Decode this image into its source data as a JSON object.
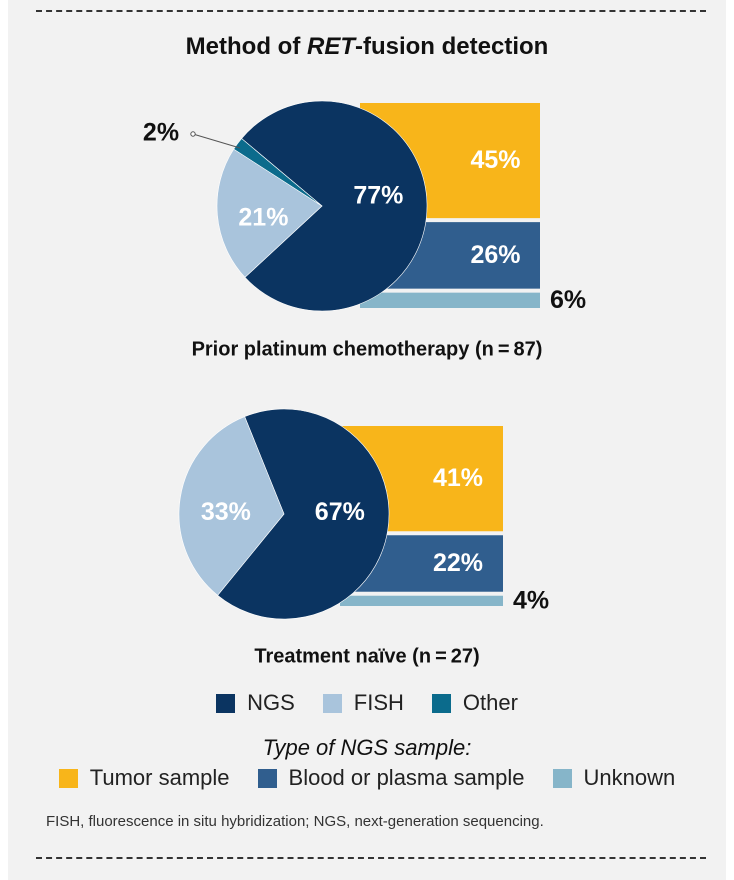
{
  "title_prefix": "Method of ",
  "title_italic": "RET",
  "title_suffix": "-fusion detection",
  "colors": {
    "ngs": "#0b3461",
    "fish": "#a9c4dc",
    "other": "#0b6b8c",
    "tumor": "#f8b51a",
    "blood": "#305e8e",
    "unknown": "#86b5c9"
  },
  "chart_data": [
    {
      "type": "pie",
      "title": "Prior platinum chemotherapy (n = 87)",
      "slices": [
        {
          "key": "ngs",
          "name": "NGS",
          "value": 77,
          "label": "77%"
        },
        {
          "key": "fish",
          "name": "FISH",
          "value": 21,
          "label": "21%"
        },
        {
          "key": "other",
          "name": "Other",
          "value": 2,
          "label": "2%"
        }
      ],
      "ngs_breakdown": [
        {
          "key": "tumor",
          "name": "Tumor sample",
          "value": 45,
          "label": "45%"
        },
        {
          "key": "blood",
          "name": "Blood or plasma sample",
          "value": 26,
          "label": "26%"
        },
        {
          "key": "unknown",
          "name": "Unknown",
          "value": 6,
          "label": "6%"
        }
      ]
    },
    {
      "type": "pie",
      "title": "Treatment naïve (n = 27)",
      "slices": [
        {
          "key": "ngs",
          "name": "NGS",
          "value": 67,
          "label": "67%"
        },
        {
          "key": "fish",
          "name": "FISH",
          "value": 33,
          "label": "33%"
        }
      ],
      "ngs_breakdown": [
        {
          "key": "tumor",
          "name": "Tumor sample",
          "value": 41,
          "label": "41%"
        },
        {
          "key": "blood",
          "name": "Blood or plasma sample",
          "value": 22,
          "label": "22%"
        },
        {
          "key": "unknown",
          "name": "Unknown",
          "value": 4,
          "label": "4%"
        }
      ]
    }
  ],
  "legend_method": [
    {
      "key": "ngs",
      "label": "NGS"
    },
    {
      "key": "fish",
      "label": "FISH"
    },
    {
      "key": "other",
      "label": "Other"
    }
  ],
  "legend_sample_title": "Type of NGS sample:",
  "legend_sample": [
    {
      "key": "tumor",
      "label": "Tumor sample"
    },
    {
      "key": "blood",
      "label": "Blood or plasma sample"
    },
    {
      "key": "unknown",
      "label": "Unknown"
    }
  ],
  "footnote": "FISH, fluorescence in situ hybridization; NGS, next-generation sequencing."
}
